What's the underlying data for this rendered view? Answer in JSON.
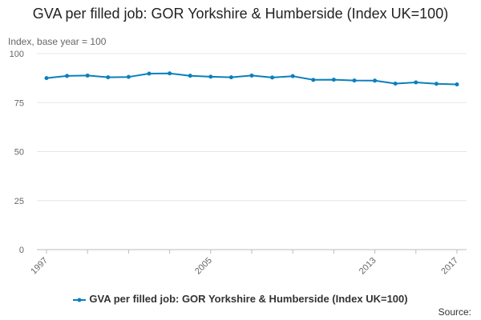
{
  "chart_data": {
    "type": "line",
    "title": "GVA per filled job: GOR Yorkshire & Humberside (Index UK=100)",
    "ylabel": "Index, base year = 100",
    "xlabel": "",
    "ylim": [
      0,
      100
    ],
    "yticks": [
      "0",
      "25",
      "50",
      "75",
      "100"
    ],
    "xlim": [
      1997,
      2017
    ],
    "xticks": [
      "1997",
      "2005",
      "2013",
      "2017"
    ],
    "grid": "horizontal",
    "legend_position": "bottom",
    "series": [
      {
        "name": "GVA per filled job: GOR Yorkshire & Humberside (Index UK=100)",
        "color": "#0b7fbe",
        "x": [
          1997,
          1998,
          1999,
          2000,
          2001,
          2002,
          2003,
          2004,
          2005,
          2006,
          2007,
          2008,
          2009,
          2010,
          2011,
          2012,
          2013,
          2014,
          2015,
          2016,
          2017
        ],
        "values": [
          87.5,
          88.6,
          88.8,
          87.9,
          88.1,
          89.8,
          89.9,
          88.7,
          88.2,
          87.9,
          88.8,
          87.8,
          88.5,
          86.6,
          86.7,
          86.3,
          86.2,
          84.7,
          85.3,
          84.6,
          84.3
        ]
      }
    ]
  },
  "footer": {
    "source_label": "Source:"
  }
}
